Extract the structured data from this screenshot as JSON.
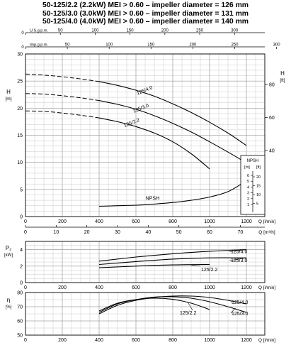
{
  "titles": [
    "50-125/2.2 (2.2kW) MEI > 0.60 – impeller diameter = 126 mm",
    "50-125/3.0  (3.0kW) MEI > 0.60 – impeller diameter = 131 mm",
    "50-125/4.0  (4.0kW) MEI > 0.60 – impeller diameter = 140 mm"
  ],
  "chart_data": [
    {
      "type": "line",
      "name": "head",
      "ylabel": "H",
      "ylabel_unit": "[m]",
      "y2label": "H",
      "y2label_unit": "[ft]",
      "xlim": [
        0,
        1300
      ],
      "ylim": [
        0,
        30
      ],
      "x_ticks": [
        0,
        200,
        400,
        600,
        800,
        1000,
        1200
      ],
      "x_tick_labels": [
        "0",
        "200",
        "400",
        "600",
        "800",
        "1000",
        "1200"
      ],
      "x_label": "Q [l/min]",
      "y_ticks": [
        0,
        5,
        10,
        15,
        20,
        25,
        30
      ],
      "y_tick_labels": [
        "0",
        "5",
        "10",
        "15",
        "20",
        "25",
        "30"
      ],
      "y2_ticks": [
        40,
        60,
        80
      ],
      "y2_tick_labels": [
        "40",
        "60",
        "80"
      ],
      "top_axes": [
        {
          "label": "U.S.g.p.m.",
          "ticks": [
            0,
            50,
            100,
            150,
            200,
            250,
            300
          ],
          "tick_labels": [
            "0",
            "50",
            "100",
            "150",
            "200",
            "250",
            "300"
          ],
          "factor": 3.785
        },
        {
          "label": "Imp.g.p.m.",
          "ticks": [
            0,
            50,
            100,
            150,
            200,
            250,
            300
          ],
          "tick_labels": [
            "0",
            "50",
            "100",
            "150",
            "200",
            "250",
            "300"
          ],
          "factor": 4.546
        }
      ],
      "dashed_until": 400,
      "series": [
        {
          "name": "125/4.0",
          "x": [
            0,
            100,
            200,
            300,
            400,
            500,
            600,
            700,
            800,
            900,
            1000,
            1100,
            1200
          ],
          "y": [
            26.3,
            26.1,
            25.8,
            25.4,
            24.9,
            24.2,
            23.3,
            22.2,
            20.8,
            19.2,
            17.4,
            15.4,
            13.1
          ]
        },
        {
          "name": "125/3.0",
          "x": [
            0,
            100,
            200,
            300,
            400,
            500,
            600,
            700,
            800,
            900,
            1000,
            1100,
            1200
          ],
          "y": [
            22.7,
            22.6,
            22.3,
            21.9,
            21.4,
            20.7,
            19.8,
            18.6,
            17.2,
            15.6,
            13.8,
            11.9,
            9.9
          ]
        },
        {
          "name": "125/2.2",
          "x": [
            0,
            100,
            200,
            300,
            400,
            500,
            600,
            700,
            800,
            900,
            1000
          ],
          "y": [
            19.5,
            19.4,
            19.1,
            18.7,
            18.2,
            17.5,
            16.6,
            15.4,
            13.8,
            11.6,
            8.8
          ]
        }
      ],
      "npsh": {
        "name": "NPSH",
        "x": [
          400,
          500,
          600,
          700,
          800,
          900,
          1000,
          1100,
          1200
        ],
        "y": [
          1.9,
          2.0,
          2.1,
          2.3,
          2.6,
          3.0,
          3.6,
          4.6,
          6.6
        ],
        "box_title": "NPSH",
        "box_units": [
          "[m]",
          "[ft]"
        ],
        "box_m_ticks": [
          "6",
          "5",
          "4",
          "3",
          "2",
          "1"
        ],
        "box_ft_ticks": [
          "20",
          "15",
          "10",
          "5"
        ]
      },
      "bottom_axis": {
        "label": "Q [m³/h]",
        "ticks": [
          0,
          10,
          20,
          30,
          40,
          50,
          60,
          70
        ],
        "tick_labels": [
          "0",
          "10",
          "20",
          "30",
          "40",
          "50",
          "60",
          "70"
        ],
        "factor": 16.667
      }
    },
    {
      "type": "line",
      "name": "power",
      "ylabel": "P₂",
      "ylabel_unit": "[kW]",
      "xlim": [
        0,
        1300
      ],
      "ylim": [
        0,
        5
      ],
      "x_ticks": [
        0,
        200,
        400,
        600,
        800,
        1000,
        1200
      ],
      "x_tick_labels": [
        "0",
        "200",
        "400",
        "600",
        "800",
        "1000",
        "1200"
      ],
      "x_label": "Q [l/min]",
      "y_ticks": [
        0,
        2,
        4
      ],
      "y_tick_labels": [
        "0",
        "2",
        "4"
      ],
      "series": [
        {
          "name": "125/4.0",
          "x": [
            400,
            600,
            800,
            1000,
            1200
          ],
          "y": [
            2.6,
            3.1,
            3.5,
            3.8,
            4.0
          ]
        },
        {
          "name": "125/3.0",
          "x": [
            400,
            600,
            800,
            1000,
            1200
          ],
          "y": [
            2.2,
            2.55,
            2.85,
            3.0,
            3.0
          ]
        },
        {
          "name": "125/2.2",
          "x": [
            400,
            600,
            800,
            1000
          ],
          "y": [
            1.8,
            2.0,
            2.15,
            2.2
          ]
        }
      ]
    },
    {
      "type": "line",
      "name": "efficiency",
      "ylabel": "η",
      "ylabel_unit": "[%]",
      "xlim": [
        0,
        1300
      ],
      "ylim": [
        50,
        80
      ],
      "x_ticks": [
        0,
        200,
        400,
        600,
        800,
        1000,
        1200
      ],
      "x_tick_labels": [
        "0",
        "200",
        "400",
        "600",
        "800",
        "1000",
        "1200"
      ],
      "x_label": "Q [l/min]",
      "y_ticks": [
        50,
        60,
        70,
        80
      ],
      "y_tick_labels": [
        "50",
        "60",
        "70",
        "80"
      ],
      "series": [
        {
          "name": "125/4.0",
          "x": [
            400,
            500,
            600,
            700,
            800,
            900,
            1000,
            1100,
            1200
          ],
          "y": [
            65,
            71,
            74.5,
            76.5,
            77.5,
            77.5,
            76.5,
            74.5,
            72
          ]
        },
        {
          "name": "125/3.0",
          "x": [
            400,
            500,
            600,
            700,
            800,
            900,
            1000,
            1100,
            1200
          ],
          "y": [
            66,
            72,
            75,
            76.8,
            77,
            76,
            73.5,
            70,
            66
          ]
        },
        {
          "name": "125/2.2",
          "x": [
            400,
            500,
            600,
            700,
            800,
            900,
            1000
          ],
          "y": [
            67,
            72.5,
            75,
            76,
            75.2,
            72.5,
            68
          ]
        }
      ]
    }
  ]
}
